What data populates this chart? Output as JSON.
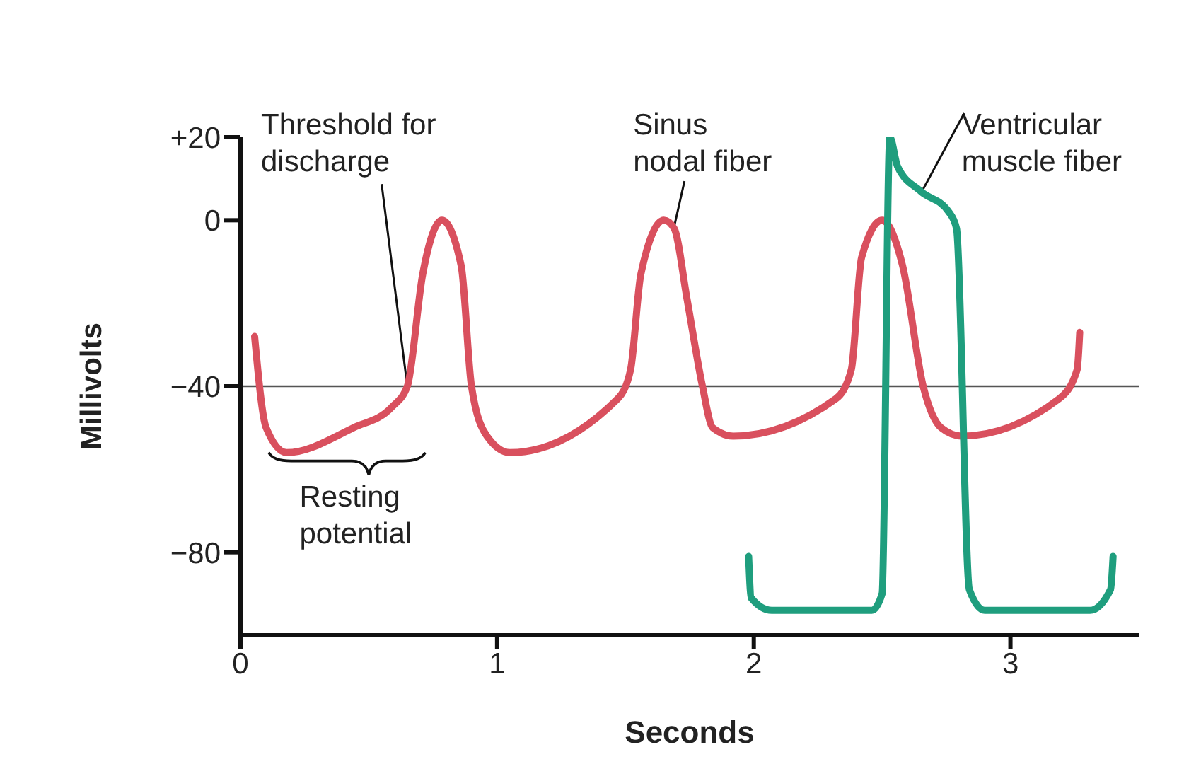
{
  "chart_data": {
    "type": "line",
    "xlabel": "Seconds",
    "ylabel": "Millivolts",
    "xlim": [
      0,
      3.5
    ],
    "xticks": [
      0,
      1,
      2,
      3
    ],
    "ylim": [
      -100,
      20
    ],
    "yticks": [
      {
        "value": 20,
        "label": "+20"
      },
      0,
      {
        "value": -40,
        "label": "−40"
      },
      {
        "value": -80,
        "label": "−80"
      }
    ],
    "grid": false,
    "legend": false,
    "ref_lines": [
      {
        "axis": "y",
        "value": -40,
        "color": "#555555"
      }
    ],
    "series": [
      {
        "name": "Sinus nodal fiber",
        "color": "#d9505e",
        "x": [
          0.055,
          0.1,
          0.18,
          0.44,
          0.59,
          0.65,
          0.71,
          0.785,
          0.86,
          0.9,
          0.96,
          1.05,
          1.47,
          1.52,
          1.56,
          1.65,
          1.69,
          1.74,
          1.8,
          1.84,
          1.92,
          2.32,
          2.38,
          2.42,
          2.5,
          2.58,
          2.66,
          2.73,
          2.81,
          3.19,
          3.26,
          3.27
        ],
        "values": [
          -28,
          -50,
          -56,
          -50,
          -45,
          -40,
          -13,
          0,
          -11,
          -40,
          -52,
          -56,
          -43,
          -36,
          -13,
          0,
          -2,
          -19,
          -40,
          -50,
          -52,
          -43,
          -36,
          -9,
          0,
          -11,
          -40,
          -50,
          -52,
          -43,
          -36,
          -27
        ]
      },
      {
        "name": "Ventricular muscle fiber",
        "color": "#1f9e7e",
        "x": [
          1.98,
          1.99,
          2.07,
          2.46,
          2.5,
          2.53,
          2.56,
          2.65,
          2.76,
          2.79,
          2.84,
          2.9,
          3.31,
          3.39,
          3.4
        ],
        "values": [
          -81,
          -91,
          -94,
          -94,
          -90,
          20,
          13,
          7,
          2,
          -2,
          -89,
          -94,
          -94,
          -89,
          -81
        ]
      }
    ],
    "annotations": [
      {
        "text": "Threshold for discharge",
        "x": 0.65,
        "y": -40
      },
      "Resting potential"
    ]
  }
}
